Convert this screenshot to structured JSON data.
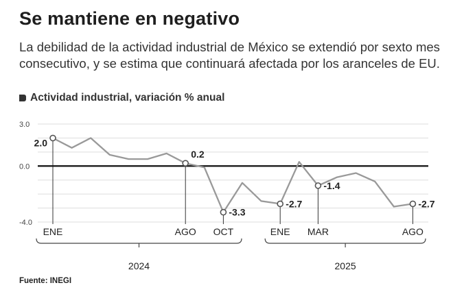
{
  "title": "Se mantiene en negativo",
  "subtitle": "La debilidad de la actividad industrial de México se extendió por sexto mes consecutivo, y se estima que continuará afectada por los aranceles de EU.",
  "legend_label": "Actividad industrial, variación % anual",
  "source": "Fuente: INEGI",
  "colors": {
    "line": "#999999",
    "zero": "#111111",
    "grid": "#dddddd",
    "text": "#222222"
  },
  "chart_data": {
    "type": "line",
    "title": "Actividad industrial, variación % anual",
    "xlabel": "",
    "ylabel": "Variación % anual",
    "ylim": [
      -4.0,
      3.0
    ],
    "yticks": [
      "3.0",
      "0.0",
      "-4.0"
    ],
    "grid": true,
    "x": [
      "ENE 2024",
      "FEB 2024",
      "MAR 2024",
      "ABR 2024",
      "MAY 2024",
      "JUN 2024",
      "JUL 2024",
      "AGO 2024",
      "SEP 2024",
      "OCT 2024",
      "NOV 2024",
      "DIC 2024",
      "ENE 2025",
      "FEB 2025",
      "MAR 2025",
      "ABR 2025",
      "MAY 2025",
      "JUN 2025",
      "JUL 2025",
      "AGO 2025"
    ],
    "series": [
      {
        "name": "Actividad industrial",
        "values": [
          2.0,
          1.3,
          2.0,
          0.8,
          0.5,
          0.5,
          0.9,
          0.2,
          -0.1,
          -3.3,
          -1.2,
          -2.5,
          -2.7,
          0.3,
          -1.4,
          -0.8,
          -0.5,
          -1.1,
          -2.9,
          -2.7
        ]
      }
    ],
    "highlights": [
      {
        "index": 0,
        "label": "2.0",
        "position": "left"
      },
      {
        "index": 7,
        "label": "0.2",
        "position": "above-right"
      },
      {
        "index": 9,
        "label": "-3.3",
        "position": "right"
      },
      {
        "index": 12,
        "label": "-2.7",
        "position": "right"
      },
      {
        "index": 14,
        "label": "-1.4",
        "position": "right"
      },
      {
        "index": 19,
        "label": "-2.7",
        "position": "right"
      }
    ],
    "month_ticks": [
      {
        "index": 0,
        "label": "ENE"
      },
      {
        "index": 7,
        "label": "AGO"
      },
      {
        "index": 9,
        "label": "OCT"
      },
      {
        "index": 12,
        "label": "ENE"
      },
      {
        "index": 14,
        "label": "MAR"
      },
      {
        "index": 19,
        "label": "AGO"
      }
    ],
    "years": [
      {
        "label": "2024",
        "from": 0,
        "to": 11
      },
      {
        "label": "2025",
        "from": 12,
        "to": 19
      }
    ]
  }
}
